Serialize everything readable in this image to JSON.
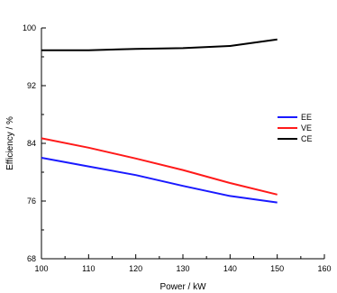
{
  "chart_data": {
    "type": "line",
    "xlabel": "Power / kW",
    "ylabel": "Efficiency / %",
    "xlim": [
      100,
      160
    ],
    "ylim": [
      68,
      100
    ],
    "xticks": [
      100,
      110,
      120,
      130,
      140,
      150,
      160
    ],
    "yticks": [
      68,
      76,
      84,
      92,
      100
    ],
    "x": [
      100,
      110,
      120,
      130,
      140,
      150
    ],
    "series": [
      {
        "name": "EE",
        "color": "#1a1aff",
        "values": [
          82.0,
          80.8,
          79.6,
          78.1,
          76.7,
          75.8
        ]
      },
      {
        "name": "VE",
        "color": "#ff1a1a",
        "values": [
          84.7,
          83.4,
          81.9,
          80.3,
          78.5,
          76.9
        ]
      },
      {
        "name": "CE",
        "color": "#000000",
        "values": [
          96.9,
          96.9,
          97.1,
          97.2,
          97.5,
          98.4
        ]
      }
    ],
    "grid": false,
    "legend_position": "right"
  }
}
